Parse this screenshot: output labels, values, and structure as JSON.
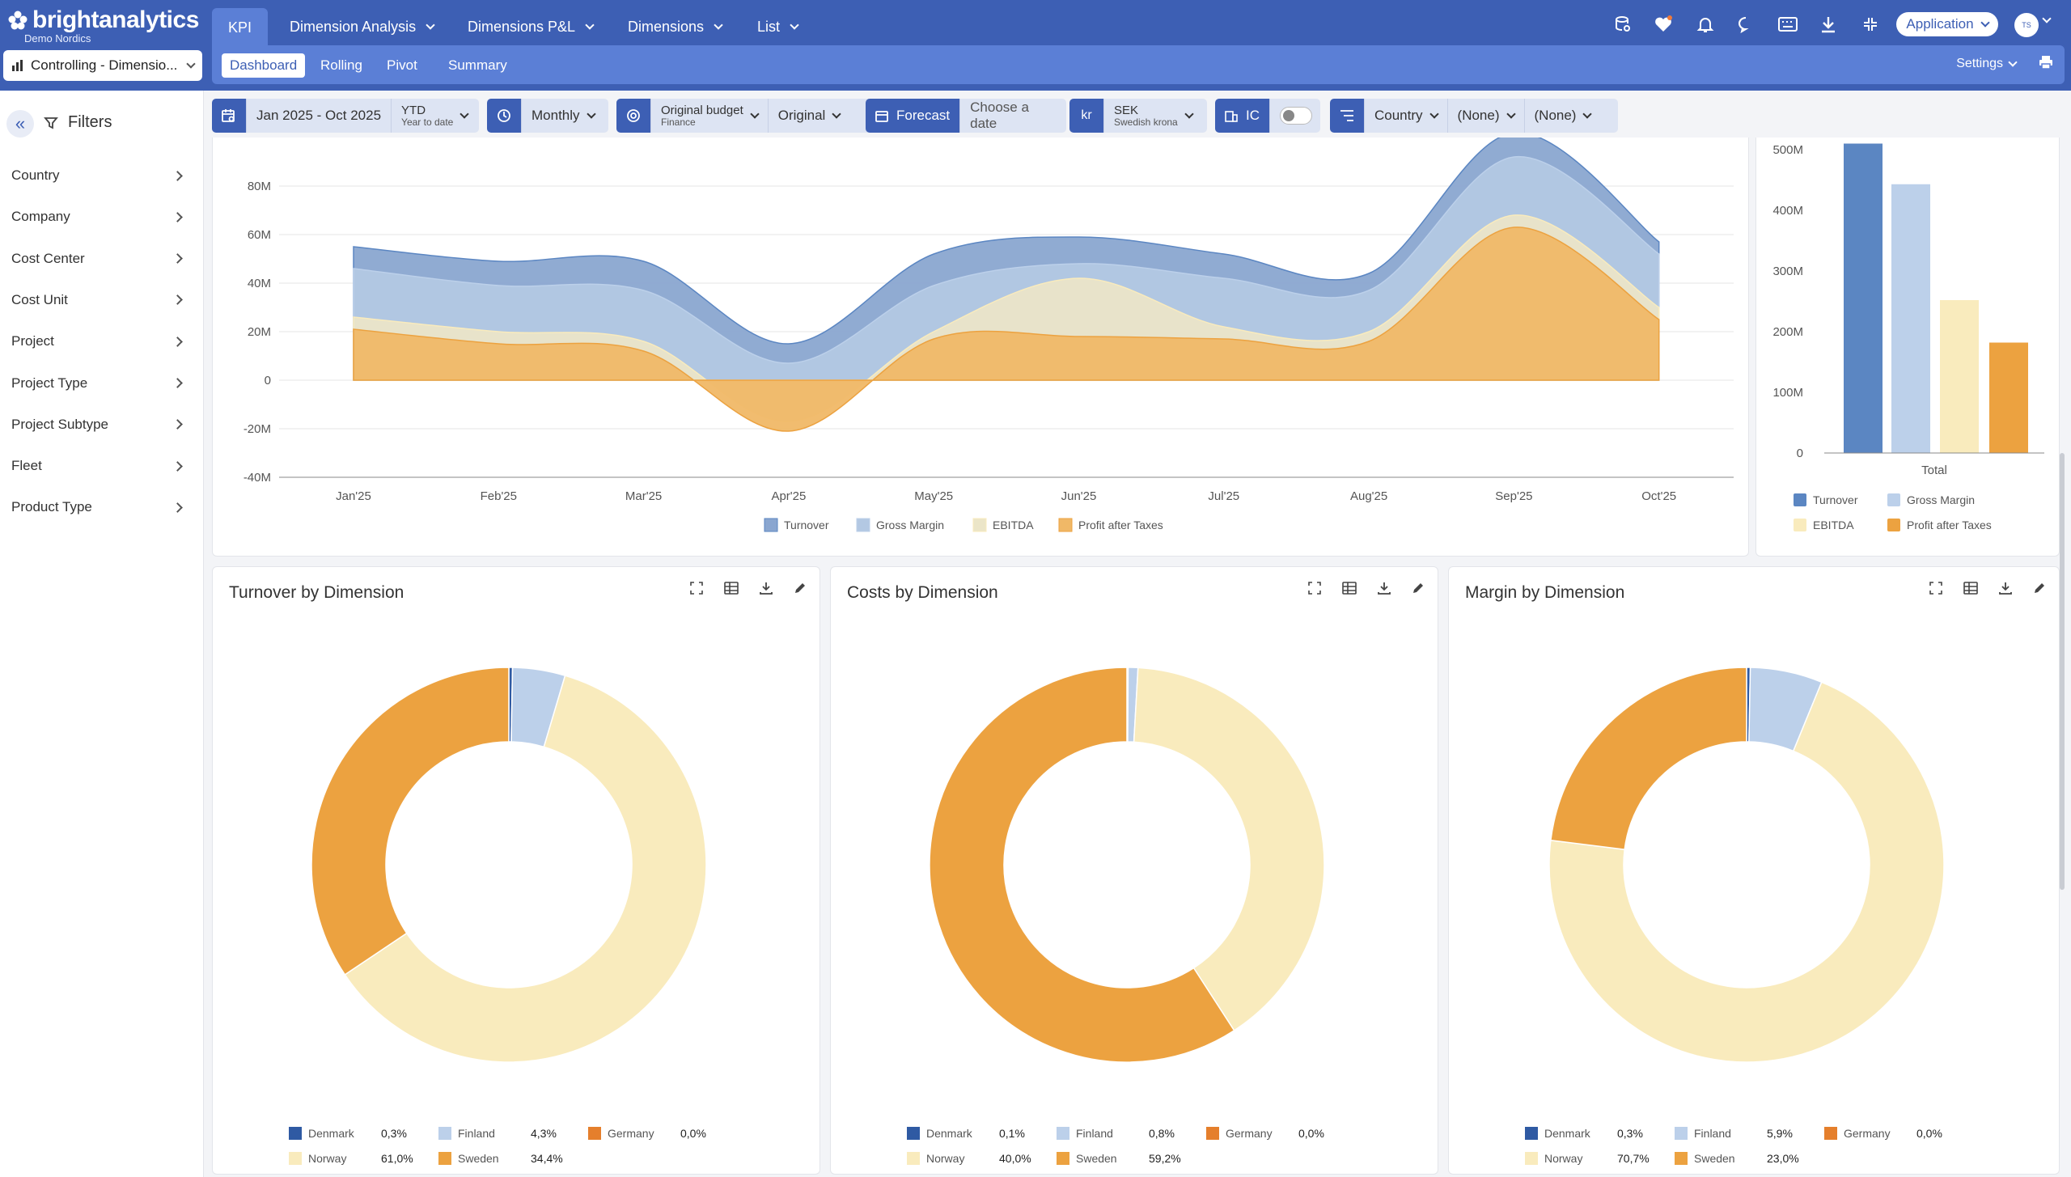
{
  "app": {
    "brand": "brightanalytics",
    "subtitle": "Demo Nordics",
    "context": "Controlling - Dimensio..."
  },
  "nav": {
    "main_tabs": [
      {
        "label": "KPI"
      },
      {
        "label": "Dimension Analysis"
      },
      {
        "label": "Dimensions P&L"
      },
      {
        "label": "Dimensions"
      },
      {
        "label": "List"
      }
    ],
    "sub_tabs": [
      {
        "label": "Dashboard"
      },
      {
        "label": "Rolling"
      },
      {
        "label": "Pivot"
      },
      {
        "label": "Summary"
      }
    ],
    "settings_label": "Settings",
    "application_label": "Application",
    "avatar_initials": "TS"
  },
  "filters": {
    "title": "Filters",
    "items": [
      {
        "label": "Country"
      },
      {
        "label": "Company"
      },
      {
        "label": "Cost Center"
      },
      {
        "label": "Cost Unit"
      },
      {
        "label": "Project"
      },
      {
        "label": "Project Type"
      },
      {
        "label": "Project Subtype"
      },
      {
        "label": "Fleet"
      },
      {
        "label": "Product Type"
      }
    ]
  },
  "toolbar": {
    "period": "Jan 2025 - Oct 2025",
    "ytd": "YTD",
    "ytd_sub": "Year to date",
    "interval": "Monthly",
    "budget": "Original budget",
    "budget_sub": "Finance",
    "budget_version": "Original",
    "forecast": "Forecast",
    "forecast_date": "Choose a date",
    "currency_symbol": "kr",
    "currency": "SEK",
    "currency_sub": "Swedish krona",
    "ic": "IC",
    "group1": "Country",
    "group2": "(None)",
    "group3": "(None)"
  },
  "colors": {
    "turnover": "#5b86c2",
    "gross_margin": "#bcd0ea",
    "ebitda": "#f9ebbd",
    "profit": "#eca240",
    "denmark": "#2f5aa3",
    "finland": "#bcd0ea",
    "germany": "#e57f2c",
    "norway": "#f9ebbd",
    "sweden": "#eca240"
  },
  "area_chart": {
    "chart_data": {
      "type": "area",
      "categories": [
        "Jan'25",
        "Feb'25",
        "Mar'25",
        "Apr'25",
        "May'25",
        "Jun'25",
        "Jul'25",
        "Aug'25",
        "Sep'25",
        "Oct'25"
      ],
      "y_ticks": [
        "80M",
        "60M",
        "40M",
        "20M",
        "0",
        "-20M",
        "-40M"
      ],
      "ylim": [
        -40,
        80
      ],
      "series": [
        {
          "name": "Turnover",
          "values": [
            55,
            49,
            49,
            15,
            52,
            59,
            52,
            44,
            102,
            57
          ]
        },
        {
          "name": "Gross Margin",
          "values": [
            46,
            39,
            37,
            7,
            39,
            48,
            42,
            37,
            92,
            52
          ]
        },
        {
          "name": "EBITDA",
          "values": [
            26,
            20,
            16,
            -17,
            20,
            42,
            22,
            20,
            68,
            30
          ]
        },
        {
          "name": "Profit after Taxes",
          "values": [
            21,
            15,
            12,
            -21,
            17,
            18,
            17,
            16,
            63,
            25
          ]
        }
      ]
    }
  },
  "bar_chart": {
    "chart_data": {
      "type": "bar",
      "categories": [
        "Total"
      ],
      "y_ticks": [
        "500M",
        "400M",
        "300M",
        "200M",
        "100M",
        "0"
      ],
      "ylim": [
        0,
        500
      ],
      "series": [
        {
          "name": "Turnover",
          "values": [
            510
          ]
        },
        {
          "name": "Gross Margin",
          "values": [
            443
          ]
        },
        {
          "name": "EBITDA",
          "values": [
            252
          ]
        },
        {
          "name": "Profit after Taxes",
          "values": [
            182
          ]
        }
      ]
    }
  },
  "donuts": [
    {
      "title": "Turnover by Dimension",
      "chart_data": {
        "type": "pie",
        "labels": [
          "Denmark",
          "Finland",
          "Germany",
          "Norway",
          "Sweden"
        ],
        "values": [
          0.3,
          4.3,
          0.0,
          61.0,
          34.4
        ],
        "display": [
          "0,3%",
          "4,3%",
          "0,0%",
          "61,0%",
          "34,4%"
        ]
      }
    },
    {
      "title": "Costs by Dimension",
      "chart_data": {
        "type": "pie",
        "labels": [
          "Denmark",
          "Finland",
          "Germany",
          "Norway",
          "Sweden"
        ],
        "values": [
          0.1,
          0.8,
          0.0,
          40.0,
          59.2
        ],
        "display": [
          "0,1%",
          "0,8%",
          "0,0%",
          "40,0%",
          "59,2%"
        ]
      }
    },
    {
      "title": "Margin by Dimension",
      "chart_data": {
        "type": "pie",
        "labels": [
          "Denmark",
          "Finland",
          "Germany",
          "Norway",
          "Sweden"
        ],
        "values": [
          0.3,
          5.9,
          0.0,
          70.7,
          23.0
        ],
        "display": [
          "0,3%",
          "5,9%",
          "0,0%",
          "70,7%",
          "23,0%"
        ]
      }
    }
  ]
}
